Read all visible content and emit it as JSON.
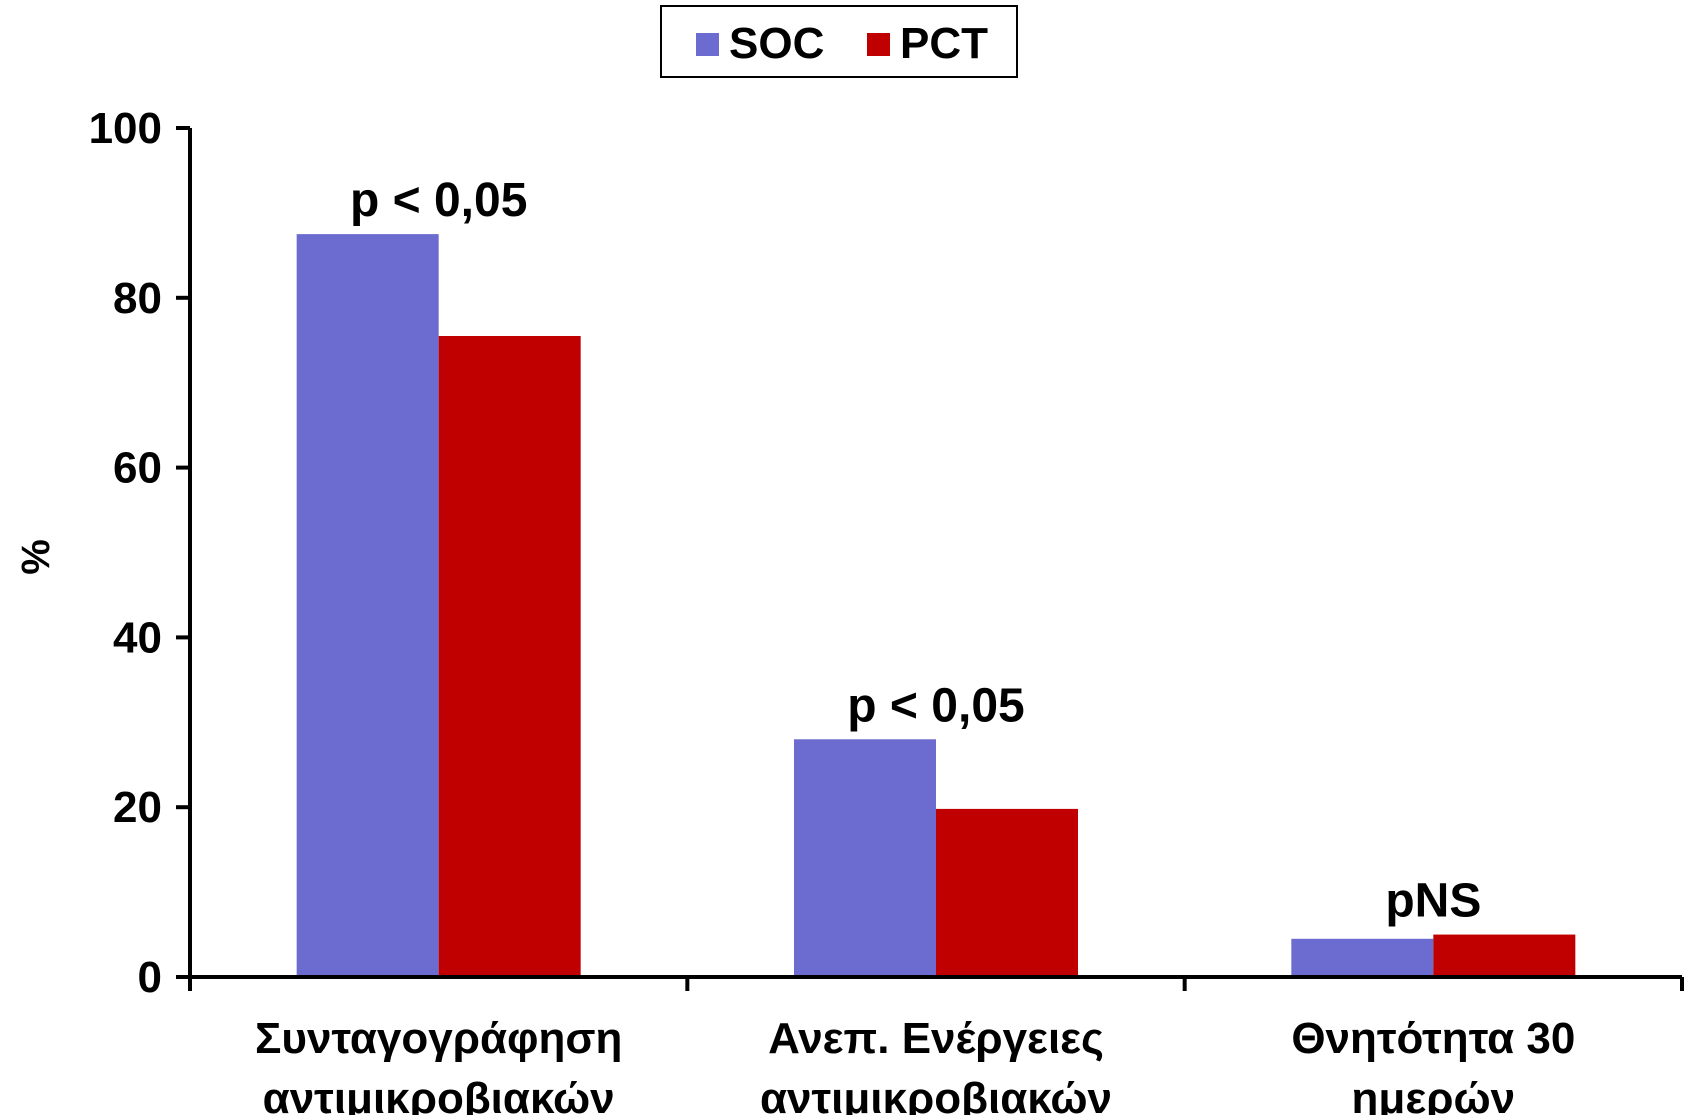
{
  "chart_data": {
    "type": "bar",
    "title": "",
    "xlabel": "",
    "ylabel": "%",
    "ylim": [
      0,
      100
    ],
    "yticks": [
      "0",
      "20",
      "40",
      "60",
      "80",
      "100"
    ],
    "categories": [
      [
        "Συνταγογράφηση",
        "αντιμικροβιακών"
      ],
      [
        "Ανεπ. Ενέργειες",
        "αντιμικροβιακών"
      ],
      [
        "Θνητότητα 30",
        "ημερών"
      ]
    ],
    "series": [
      {
        "name": "SOC",
        "color": "#6b6bd0",
        "values": [
          87.5,
          28,
          4.5
        ]
      },
      {
        "name": "PCT",
        "color": "#c00000",
        "values": [
          75.5,
          19.8,
          5
        ]
      }
    ],
    "annotations": [
      "p < 0,05",
      "p < 0,05",
      "pNS"
    ],
    "legend_position": "top-center",
    "grid": false
  }
}
